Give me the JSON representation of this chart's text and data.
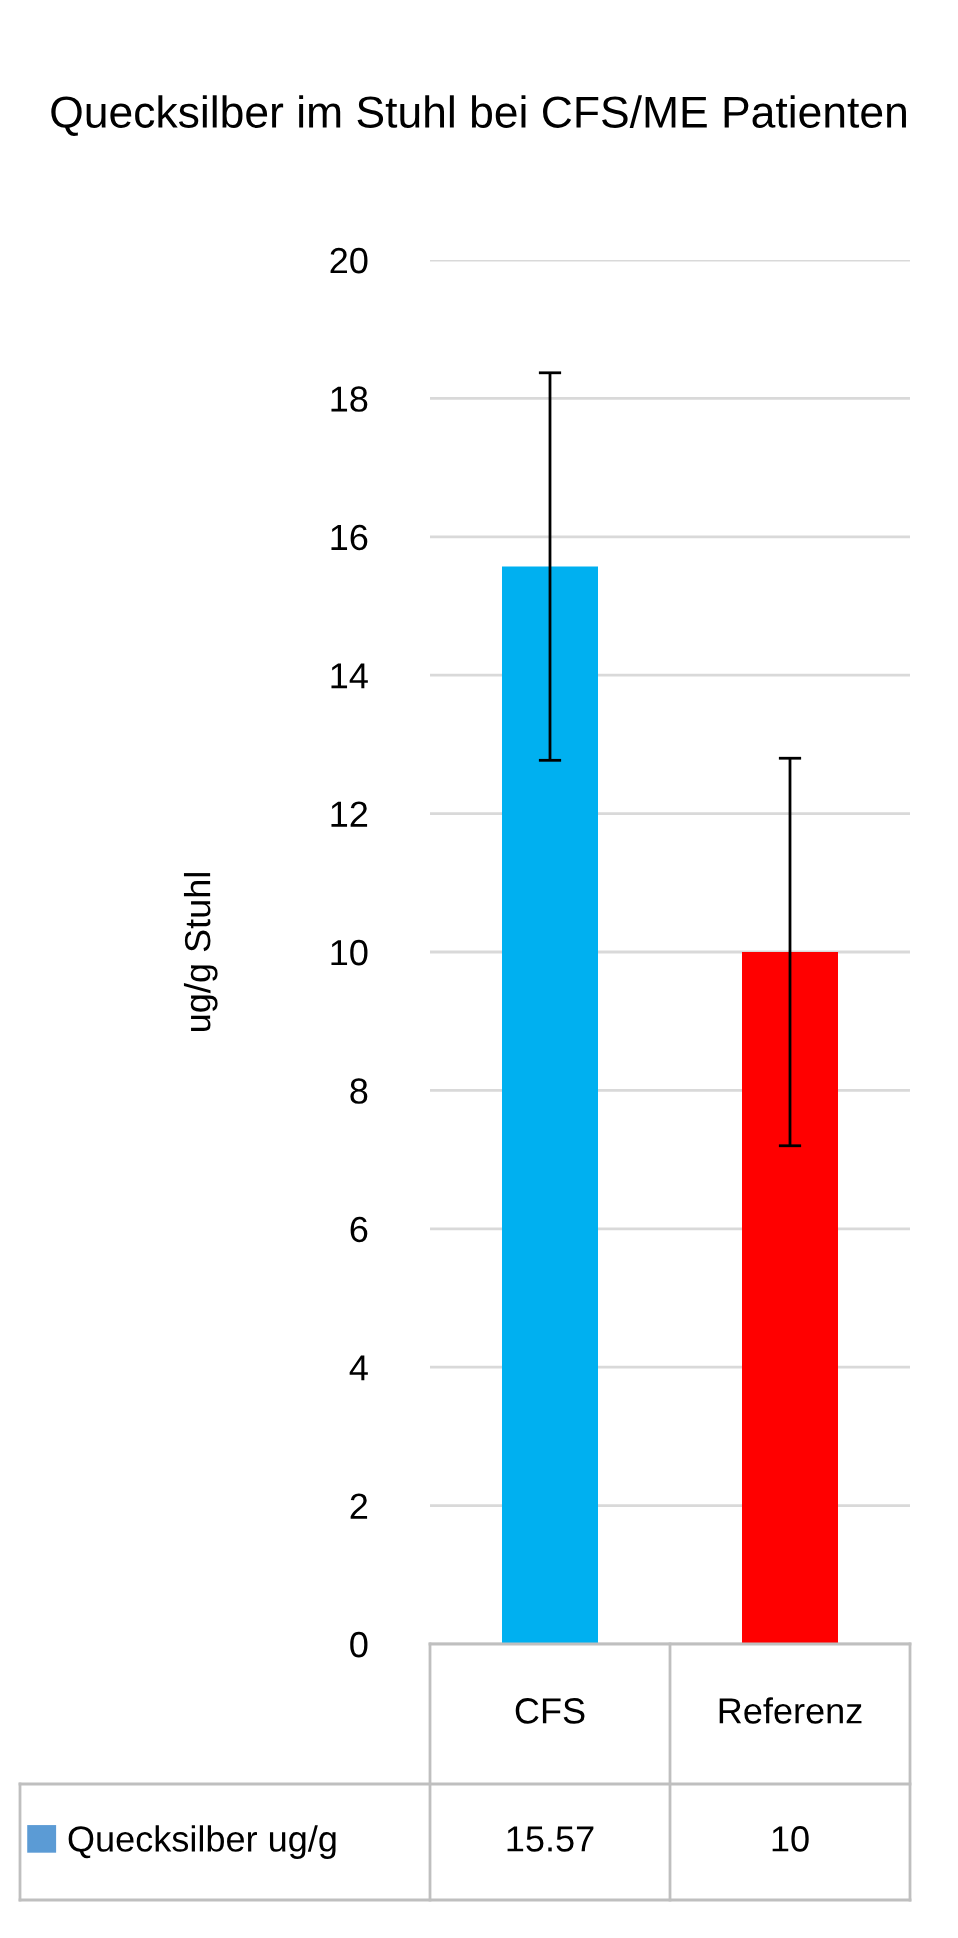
{
  "chart_data": {
    "type": "bar",
    "title": "Quecksilber im Stuhl bei CFS/ME Patienten",
    "ylabel": "ug/g Stuhl",
    "categories": [
      "CFS",
      "Referenz"
    ],
    "series": [
      {
        "name": "Quecksilber ug/g",
        "color": "#5b9bd5",
        "colors": [
          "#00b0f0",
          "#ff0000"
        ],
        "values": [
          15.57,
          10
        ],
        "errors": [
          2.8,
          2.8
        ]
      }
    ],
    "ylim": [
      0,
      20
    ],
    "yticks": [
      0,
      2,
      4,
      6,
      8,
      10,
      12,
      14,
      16,
      18,
      20
    ],
    "grid": "y",
    "legend": "bottom left",
    "data_labels": true
  }
}
